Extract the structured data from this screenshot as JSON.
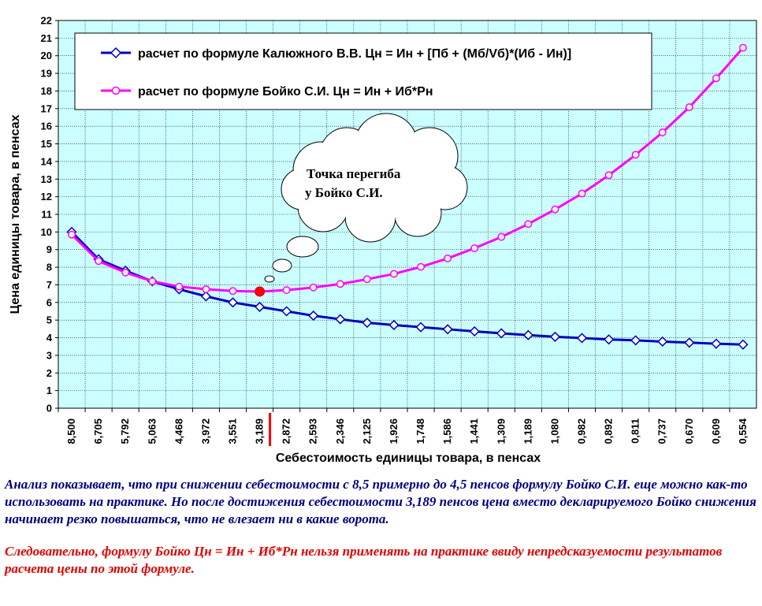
{
  "chart_data": {
    "type": "line",
    "ylabel": "Цена единицы товара, в пенсах",
    "xlabel": "Себестоимость единицы товара, в пенсах",
    "ylim": [
      0,
      22
    ],
    "yticks": [
      "0",
      "1",
      "2",
      "3",
      "4",
      "5",
      "6",
      "7",
      "8",
      "9",
      "10",
      "11",
      "12",
      "13",
      "14",
      "15",
      "16",
      "17",
      "18",
      "19",
      "20",
      "21",
      "22"
    ],
    "categories": [
      "8,500",
      "6,705",
      "5,792",
      "5,063",
      "4,468",
      "3,972",
      "3,551",
      "3,189",
      "2,872",
      "2,593",
      "2,346",
      "2,125",
      "1,926",
      "1,748",
      "1,586",
      "1,441",
      "1,309",
      "1,189",
      "1,080",
      "0,982",
      "0,892",
      "0,811",
      "0,737",
      "0,670",
      "0,609",
      "0,554"
    ],
    "grid": true,
    "legend_position": "top",
    "series": [
      {
        "name": "расчет по формуле Калюжного В.В. Цн = Ин + [Пб + (Мб/Vб)*(Иб - Ин)]",
        "color": "#0000c0",
        "marker": "diamond",
        "values": [
          10.0,
          8.45,
          7.8,
          7.2,
          6.75,
          6.35,
          6.0,
          5.75,
          5.5,
          5.25,
          5.05,
          4.85,
          4.72,
          4.6,
          4.48,
          4.36,
          4.25,
          4.15,
          4.05,
          3.98,
          3.9,
          3.85,
          3.78,
          3.72,
          3.66,
          3.61
        ]
      },
      {
        "name": "расчет по формуле Бойко С.И.  Цн = Ин + Иб*Рн",
        "color": "#ff00ff",
        "marker": "circle",
        "values": [
          9.85,
          8.35,
          7.7,
          7.2,
          6.9,
          6.75,
          6.65,
          6.62,
          6.7,
          6.85,
          7.05,
          7.32,
          7.62,
          8.02,
          8.5,
          9.08,
          9.72,
          10.45,
          11.28,
          12.18,
          13.22,
          14.38,
          15.65,
          17.08,
          18.72,
          20.45
        ]
      }
    ],
    "highlight": {
      "category": "3,189",
      "value": 6.62,
      "color": "#ff0000"
    },
    "callout": {
      "line1": "Точка перегиба",
      "line2": "у Бойко С.И."
    }
  },
  "notes": {
    "analysis": "Анализ показывает, что при снижении себестоимости с 8,5 примерно до 4,5 пенсов формулу Бойко С.И. еще можно как-то использовать на практике. Но после достижения себестоимости 3,189 пенсов цена вместо декларируемого Бойко снижения начинает резко повышаться, что не влезает ни в какие ворота.",
    "conclusion": "Следовательно, формулу Бойко Цн = Ин + Иб*Рн нельзя применять на практике ввиду непредсказуемости результатов расчета цены по этой формуле."
  }
}
